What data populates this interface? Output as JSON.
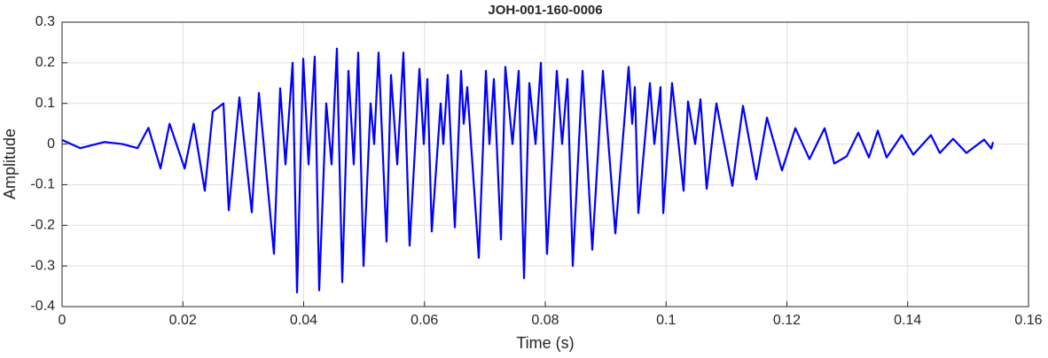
{
  "chart_data": {
    "type": "line",
    "title": "JOH-001-160-0006",
    "xlabel": "Time (s)",
    "ylabel": "Amplitude",
    "xlim": [
      0,
      0.16
    ],
    "ylim": [
      -0.4,
      0.3
    ],
    "xticks": [
      0,
      0.02,
      0.04,
      0.06,
      0.08,
      0.1,
      0.12,
      0.14,
      0.16
    ],
    "yticks": [
      -0.4,
      -0.3,
      -0.2,
      -0.1,
      0,
      0.1,
      0.2,
      0.3
    ],
    "grid": true,
    "series": [
      {
        "color": "#0000ff",
        "x": [
          0,
          0.003,
          0.007,
          0.01,
          0.0125,
          0.0143,
          0.0163,
          0.0178,
          0.0203,
          0.0218,
          0.02363,
          0.02495,
          0.02672,
          0.0276,
          0.02936,
          0.03141,
          0.03259,
          0.03508,
          0.03611,
          0.03699,
          0.03817,
          0.0389,
          0.03993,
          0.04081,
          0.04183,
          0.04257,
          0.04374,
          0.04462,
          0.0455,
          0.04639,
          0.04741,
          0.04829,
          0.04903,
          0.04991,
          0.05108,
          0.05167,
          0.0524,
          0.05372,
          0.05446,
          0.05549,
          0.05651,
          0.05754,
          0.05916,
          0.05989,
          0.06048,
          0.06121,
          0.06268,
          0.06312,
          0.06385,
          0.06503,
          0.06606,
          0.0665,
          0.06708,
          0.06899,
          0.07017,
          0.07075,
          0.07149,
          0.07266,
          0.07339,
          0.07457,
          0.0756,
          0.07648,
          0.07736,
          0.07839,
          0.07927,
          0.08029,
          0.08191,
          0.08279,
          0.08367,
          0.08455,
          0.08617,
          0.08778,
          0.08954,
          0.0916,
          0.0938,
          0.09439,
          0.09483,
          0.09541,
          0.09732,
          0.09806,
          0.09908,
          0.09953,
          0.10099,
          0.1029,
          0.10363,
          0.10481,
          0.10569,
          0.10672,
          0.10833,
          0.11097,
          0.11273,
          0.11494,
          0.1167,
          0.11919,
          0.1214,
          0.12374,
          0.12624,
          0.12785,
          0.12991,
          0.13182,
          0.13358,
          0.13505,
          0.13651,
          0.13901,
          0.14092,
          0.14385,
          0.14532,
          0.14752,
          0.14972,
          0.15266,
          0.15384,
          0.15413
        ],
        "values": [
          0.01,
          -0.01,
          0.005,
          0,
          -0.01,
          0.04,
          -0.06,
          0.05,
          -0.06,
          0.05,
          -0.115,
          0.08,
          0.1,
          -0.163,
          0.115,
          -0.168,
          0.126,
          -0.27,
          0.137,
          -0.05,
          0.2,
          -0.365,
          0.21,
          -0.05,
          0.215,
          -0.36,
          0.1,
          -0.05,
          0.235,
          -0.34,
          0.18,
          -0.05,
          0.225,
          -0.3,
          0.1,
          0,
          0.225,
          -0.24,
          0.17,
          -0.05,
          0.225,
          -0.25,
          0.185,
          0,
          0.16,
          -0.215,
          0.1,
          0,
          0.17,
          -0.205,
          0.18,
          0.05,
          0.14,
          -0.28,
          0.18,
          0,
          0.16,
          -0.235,
          0.19,
          0,
          0.18,
          -0.33,
          0.15,
          0,
          0.2,
          -0.27,
          0.18,
          0,
          0.16,
          -0.3,
          0.18,
          -0.26,
          0.18,
          -0.22,
          0.19,
          0.05,
          0.14,
          -0.17,
          0.15,
          0,
          0.14,
          -0.17,
          0.15,
          -0.115,
          0.105,
          0,
          0.11,
          -0.11,
          0.1,
          -0.103,
          0.094,
          -0.087,
          0.065,
          -0.065,
          0.039,
          -0.037,
          0.039,
          -0.048,
          -0.03,
          0.028,
          -0.033,
          0.033,
          -0.033,
          0.022,
          -0.026,
          0.022,
          -0.022,
          0.013,
          -0.022,
          0.011,
          -0.011,
          0.005
        ]
      }
    ]
  }
}
